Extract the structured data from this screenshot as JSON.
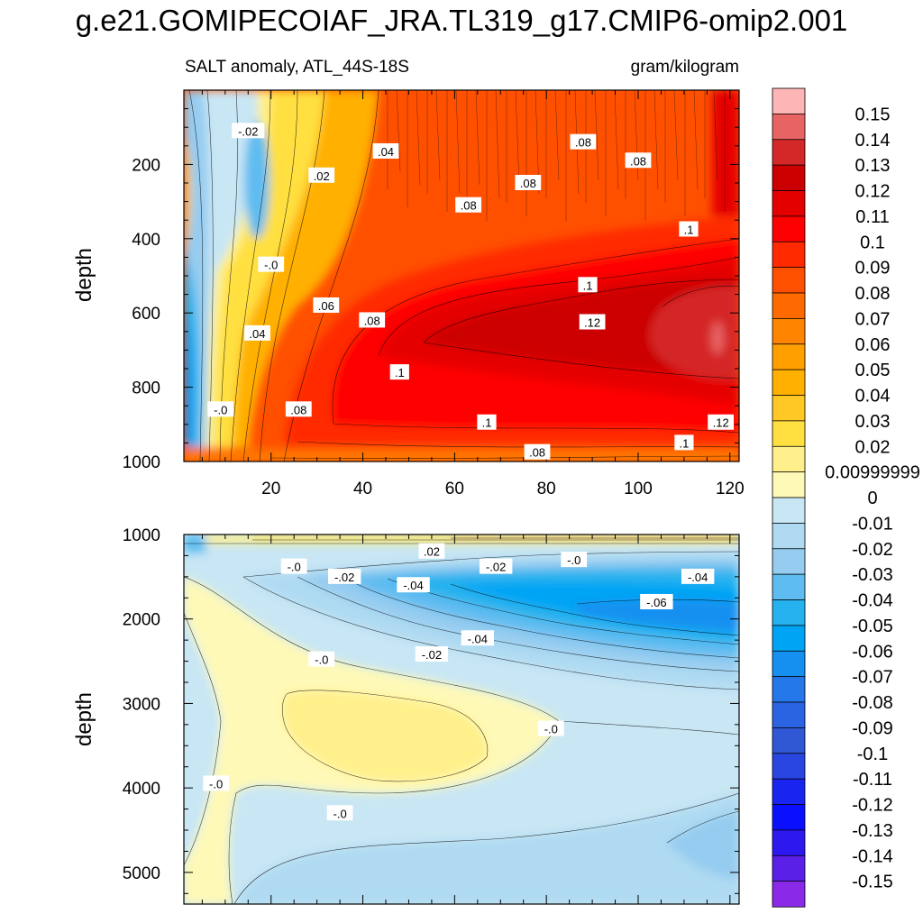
{
  "title": "g.e21.GOMIPECOIAF_JRA.TL319_g17.CMIP6-omip2.001",
  "subtitle_left": "SALT anomaly, ATL_44S-18S",
  "subtitle_right": "gram/kilogram",
  "chart_data": [
    {
      "type": "heatmap",
      "name": "upper-panel",
      "variable": "SALT anomaly",
      "region": "ATL_44S-18S",
      "units": "gram/kilogram",
      "xlabel": "",
      "ylabel": "depth",
      "xlim": [
        1,
        122
      ],
      "ylim": [
        1000,
        0
      ],
      "xticks": [
        "20",
        "40",
        "60",
        "80",
        "100",
        "120"
      ],
      "yticks": [
        "200",
        "400",
        "600",
        "800",
        "1000"
      ],
      "contour_labels": [
        {
          "text": "-.02",
          "x": 15,
          "y": 110
        },
        {
          "text": ".04",
          "x": 45,
          "y": 165
        },
        {
          "text": ".02",
          "x": 31,
          "y": 230
        },
        {
          "text": ".08",
          "x": 88,
          "y": 140
        },
        {
          "text": ".08",
          "x": 100,
          "y": 190
        },
        {
          "text": ".08",
          "x": 76,
          "y": 250
        },
        {
          "text": ".08",
          "x": 63,
          "y": 310
        },
        {
          "text": ".1",
          "x": 111,
          "y": 375
        },
        {
          "text": "-.0",
          "x": 20,
          "y": 470
        },
        {
          "text": ".1",
          "x": 89,
          "y": 525
        },
        {
          "text": ".06",
          "x": 32,
          "y": 580
        },
        {
          "text": ".08",
          "x": 42,
          "y": 620
        },
        {
          "text": ".12",
          "x": 90,
          "y": 625
        },
        {
          "text": ".04",
          "x": 17,
          "y": 655
        },
        {
          "text": ".1",
          "x": 48,
          "y": 760
        },
        {
          "text": "-.0",
          "x": 9,
          "y": 860
        },
        {
          "text": ".08",
          "x": 26,
          "y": 860
        },
        {
          "text": ".1",
          "x": 67,
          "y": 895
        },
        {
          "text": ".12",
          "x": 118,
          "y": 895
        },
        {
          "text": ".1",
          "x": 110,
          "y": 950
        },
        {
          "text": ".08",
          "x": 78,
          "y": 975
        }
      ]
    },
    {
      "type": "heatmap",
      "name": "lower-panel",
      "variable": "SALT anomaly",
      "units": "gram/kilogram",
      "xlabel": "",
      "ylabel": "depth",
      "xlim": [
        1,
        122
      ],
      "ylim": [
        5375,
        1000
      ],
      "xticks": [],
      "yticks": [
        "1000",
        "2000",
        "3000",
        "4000",
        "5000"
      ],
      "contour_labels": [
        {
          "text": ".02",
          "x": 55,
          "y": 1200
        },
        {
          "text": "-.0",
          "x": 25,
          "y": 1380
        },
        {
          "text": "-.02",
          "x": 36,
          "y": 1500
        },
        {
          "text": "-.02",
          "x": 69,
          "y": 1380
        },
        {
          "text": "-.0",
          "x": 86,
          "y": 1300
        },
        {
          "text": "-.04",
          "x": 51,
          "y": 1600
        },
        {
          "text": "-.04",
          "x": 113,
          "y": 1500
        },
        {
          "text": "-.06",
          "x": 104,
          "y": 1800
        },
        {
          "text": "-.04",
          "x": 65,
          "y": 2230
        },
        {
          "text": "-.02",
          "x": 55,
          "y": 2420
        },
        {
          "text": "-.0",
          "x": 31,
          "y": 2480
        },
        {
          "text": "-.0",
          "x": 81,
          "y": 3300
        },
        {
          "text": "-.0",
          "x": 8,
          "y": 3950
        },
        {
          "text": "-.0",
          "x": 35,
          "y": 4300
        }
      ]
    }
  ],
  "colorbar": {
    "labels": [
      "0.15",
      "0.14",
      "0.13",
      "0.12",
      "0.11",
      "0.1",
      "0.09",
      "0.08",
      "0.07",
      "0.06",
      "0.05",
      "0.04",
      "0.03",
      "0.02",
      "0.00999999",
      "0",
      "-0.01",
      "-0.02",
      "-0.03",
      "-0.04",
      "-0.05",
      "-0.06",
      "-0.07",
      "-0.08",
      "-0.09",
      "-0.1",
      "-0.11",
      "-0.12",
      "-0.13",
      "-0.14",
      "-0.15"
    ],
    "colors": [
      "#fdb5b5",
      "#e86464",
      "#d42727",
      "#cc0000",
      "#e50000",
      "#ff0000",
      "#ff2a00",
      "#ff5000",
      "#ff6a00",
      "#ff8400",
      "#ffa000",
      "#ffb000",
      "#ffc824",
      "#ffe040",
      "#fff08c",
      "#fff9b8",
      "#c8e6f4",
      "#afdaf2",
      "#95ccf0",
      "#5ebcf0",
      "#25b2ee",
      "#00a4f4",
      "#1690f0",
      "#2478ea",
      "#2a64e2",
      "#3058d4",
      "#2a46e0",
      "#1a24f0",
      "#0a10ff",
      "#2e18f0",
      "#5a20e8",
      "#8a2ae8"
    ]
  }
}
